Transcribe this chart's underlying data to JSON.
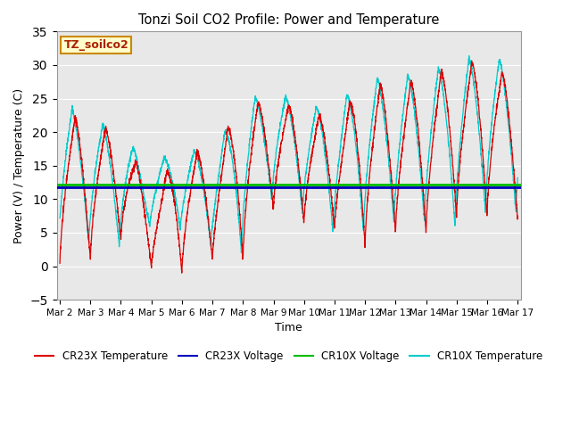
{
  "title": "Tonzi Soil CO2 Profile: Power and Temperature",
  "xlabel": "Time",
  "ylabel": "Power (V) / Temperature (C)",
  "ylim": [
    -5,
    35
  ],
  "yticks": [
    -5,
    0,
    5,
    10,
    15,
    20,
    25,
    30,
    35
  ],
  "x_tick_positions": [
    0,
    1,
    2,
    3,
    4,
    5,
    6,
    7,
    8,
    9,
    10,
    11,
    12,
    13,
    14,
    15
  ],
  "x_tick_labels": [
    "Mar 2",
    "Mar 3",
    "Mar 4",
    "Mar 5",
    "Mar 6",
    "Mar 7",
    "Mar 8",
    "Mar 9",
    "Mar 10",
    "Mar 11",
    "Mar 12",
    "Mar 13",
    "Mar 14",
    "Mar 15",
    "Mar 16",
    "Mar 17"
  ],
  "cr23x_voltage": 11.8,
  "cr10x_voltage": 12.15,
  "bg_color": "#e8e8e8",
  "plot_bg": "#e8e8e8",
  "cr23x_temp_color": "#dd0000",
  "cr23x_voltage_color": "#0000bb",
  "cr10x_voltage_color": "#00bb00",
  "cr10x_temp_color": "#00cccc",
  "legend_label_cr23x_temp": "CR23X Temperature",
  "legend_label_cr23x_volt": "CR23X Voltage",
  "legend_label_cr10x_volt": "CR10X Voltage",
  "legend_label_cr10x_temp": "CR10X Temperature",
  "annotation_text": "TZ_soilco2",
  "annotation_bg": "#ffffcc",
  "annotation_border": "#cc8800",
  "peak_heights_cr23x": [
    23,
    21,
    20,
    11,
    17,
    17,
    24,
    25,
    23,
    22,
    27,
    27,
    28,
    30,
    31,
    27
  ],
  "peak_heights_cr10x": [
    24.5,
    22,
    20,
    15,
    17.5,
    17,
    24,
    26.5,
    24,
    23.5,
    28,
    28,
    29,
    30,
    32,
    29.5
  ],
  "min_heights_cr23x": [
    0,
    1,
    4,
    0,
    -1,
    1,
    1,
    8.5,
    6.5,
    5.5,
    3,
    5,
    5,
    7.5,
    7.5,
    7
  ],
  "min_heights_cr10x": [
    2,
    3.5,
    3,
    6,
    5.5,
    3,
    2,
    10,
    8,
    5,
    5,
    6.5,
    6.5,
    6,
    8,
    8
  ]
}
